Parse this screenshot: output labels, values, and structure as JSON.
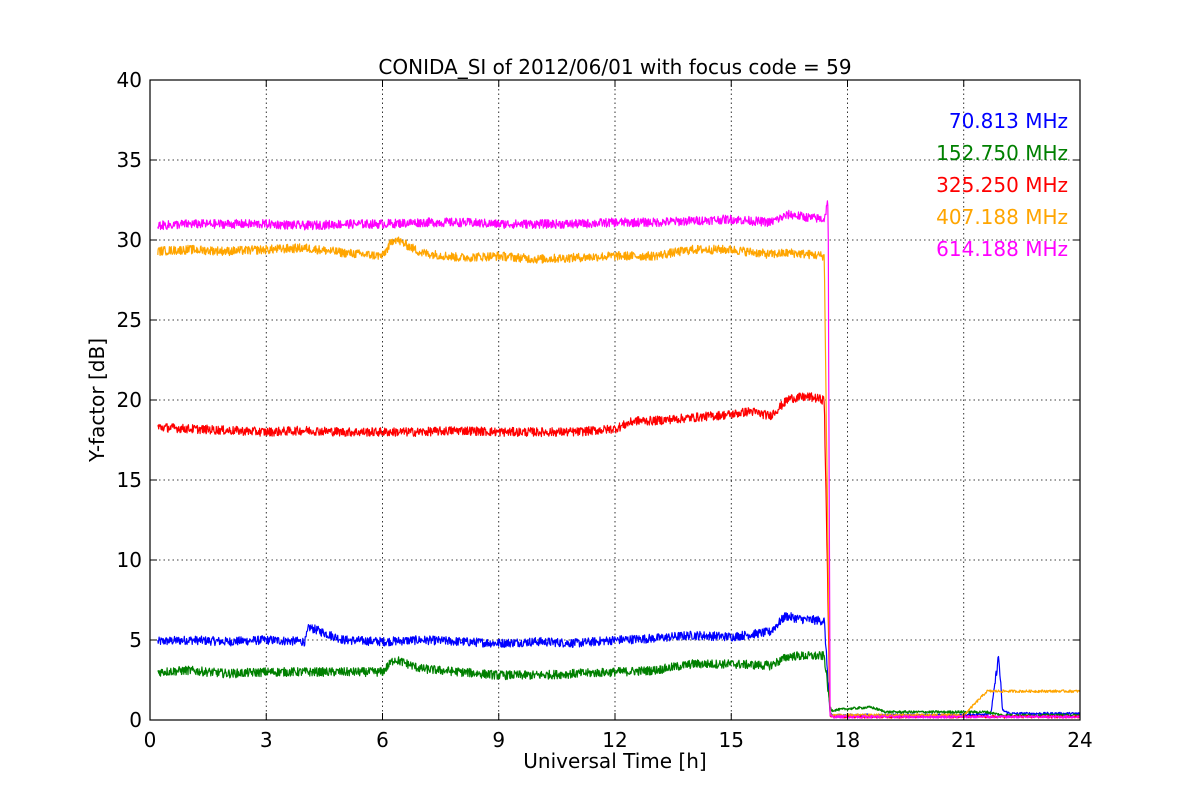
{
  "chart_data": {
    "type": "line",
    "title": "CONIDA_SI of 2012/06/01 with focus code = 59",
    "xlabel": "Universal Time [h]",
    "ylabel": "Y-factor [dB]",
    "xlim": [
      0,
      24
    ],
    "ylim": [
      0,
      40
    ],
    "xticks": [
      0,
      3,
      6,
      9,
      12,
      15,
      18,
      21,
      24
    ],
    "yticks": [
      0,
      5,
      10,
      15,
      20,
      25,
      30,
      35,
      40
    ],
    "grid": true,
    "legend_position": "top-right",
    "series": [
      {
        "name": "70.813 MHz",
        "color": "#0000ff",
        "x": [
          0.2,
          1,
          2,
          3,
          4,
          4.1,
          5,
          6,
          7,
          8,
          9,
          10,
          11,
          12,
          13,
          14,
          15,
          16,
          16.4,
          16.8,
          17.4,
          17.55,
          17.6,
          18,
          19,
          20,
          21,
          21.7,
          21.9,
          22.0,
          22.2,
          23,
          24
        ],
        "y": [
          4.9,
          5.0,
          4.9,
          5.0,
          4.9,
          5.8,
          5.0,
          4.9,
          5.0,
          4.9,
          4.8,
          4.9,
          4.8,
          5.0,
          5.1,
          5.3,
          5.2,
          5.5,
          6.5,
          6.3,
          6.2,
          0.4,
          0.3,
          0.3,
          0.3,
          0.3,
          0.3,
          0.4,
          4.0,
          0.6,
          0.4,
          0.4,
          0.4
        ]
      },
      {
        "name": "152.750 MHz",
        "color": "#008000",
        "x": [
          0.2,
          1,
          2,
          3,
          4,
          5,
          6,
          6.3,
          7,
          8,
          9,
          10,
          11,
          12,
          13,
          14,
          15,
          16,
          16.5,
          17.4,
          17.55,
          17.6,
          18,
          18.6,
          19,
          20,
          21,
          21.6,
          22,
          23,
          24
        ],
        "y": [
          3.0,
          3.1,
          2.9,
          3.0,
          3.0,
          3.0,
          3.0,
          3.8,
          3.2,
          3.0,
          2.8,
          2.8,
          2.9,
          3.0,
          3.1,
          3.5,
          3.5,
          3.4,
          4.0,
          4.0,
          0.8,
          0.6,
          0.7,
          0.8,
          0.5,
          0.5,
          0.5,
          0.5,
          0.3,
          0.3,
          0.3
        ]
      },
      {
        "name": "325.250 MHz",
        "color": "#ff0000",
        "x": [
          0.2,
          1,
          2,
          3,
          4,
          5,
          6,
          7,
          8,
          9,
          10,
          11,
          12,
          12.5,
          13,
          14,
          15,
          15.5,
          16,
          16.5,
          17,
          17.4,
          17.55,
          17.6,
          18,
          19,
          20,
          21,
          22,
          23,
          24
        ],
        "y": [
          18.3,
          18.2,
          18.1,
          18.0,
          18.1,
          18.0,
          18.0,
          18.0,
          18.1,
          18.0,
          18.0,
          18.0,
          18.2,
          18.7,
          18.7,
          18.9,
          19.1,
          19.3,
          19.0,
          20.1,
          20.2,
          20.0,
          0.3,
          0.2,
          0.2,
          0.2,
          0.2,
          0.2,
          0.2,
          0.2,
          0.2
        ]
      },
      {
        "name": "407.188 MHz",
        "color": "#ffa500",
        "x": [
          0.2,
          1,
          2,
          3,
          4,
          5,
          6,
          6.3,
          7,
          8,
          9,
          10,
          11,
          12,
          13,
          14,
          15,
          16,
          16.5,
          17,
          17.4,
          17.55,
          17.6,
          18,
          19,
          20,
          21,
          21.6,
          22,
          23,
          24
        ],
        "y": [
          29.3,
          29.4,
          29.3,
          29.4,
          29.5,
          29.2,
          29.0,
          30.1,
          29.2,
          28.9,
          29.0,
          28.8,
          28.9,
          29.0,
          29.0,
          29.4,
          29.4,
          29.1,
          29.2,
          29.1,
          29.0,
          0.4,
          0.3,
          0.3,
          0.3,
          0.3,
          0.3,
          1.8,
          1.8,
          1.8,
          1.8
        ]
      },
      {
        "name": "614.188 MHz",
        "color": "#ff00ff",
        "x": [
          0.2,
          1,
          2,
          3,
          4,
          5,
          6,
          7,
          8,
          9,
          10,
          11,
          12,
          13,
          14,
          15,
          16,
          16.5,
          17,
          17.4,
          17.5,
          17.55,
          17.6,
          18,
          19,
          20,
          21,
          22,
          23,
          24
        ],
        "y": [
          30.9,
          31.0,
          31.0,
          31.0,
          30.9,
          31.0,
          31.0,
          31.1,
          31.1,
          31.0,
          31.0,
          31.0,
          31.1,
          31.1,
          31.2,
          31.3,
          31.1,
          31.6,
          31.4,
          31.3,
          32.5,
          0.3,
          0.2,
          0.2,
          0.2,
          0.2,
          0.2,
          0.2,
          0.2,
          0.2
        ]
      }
    ]
  }
}
